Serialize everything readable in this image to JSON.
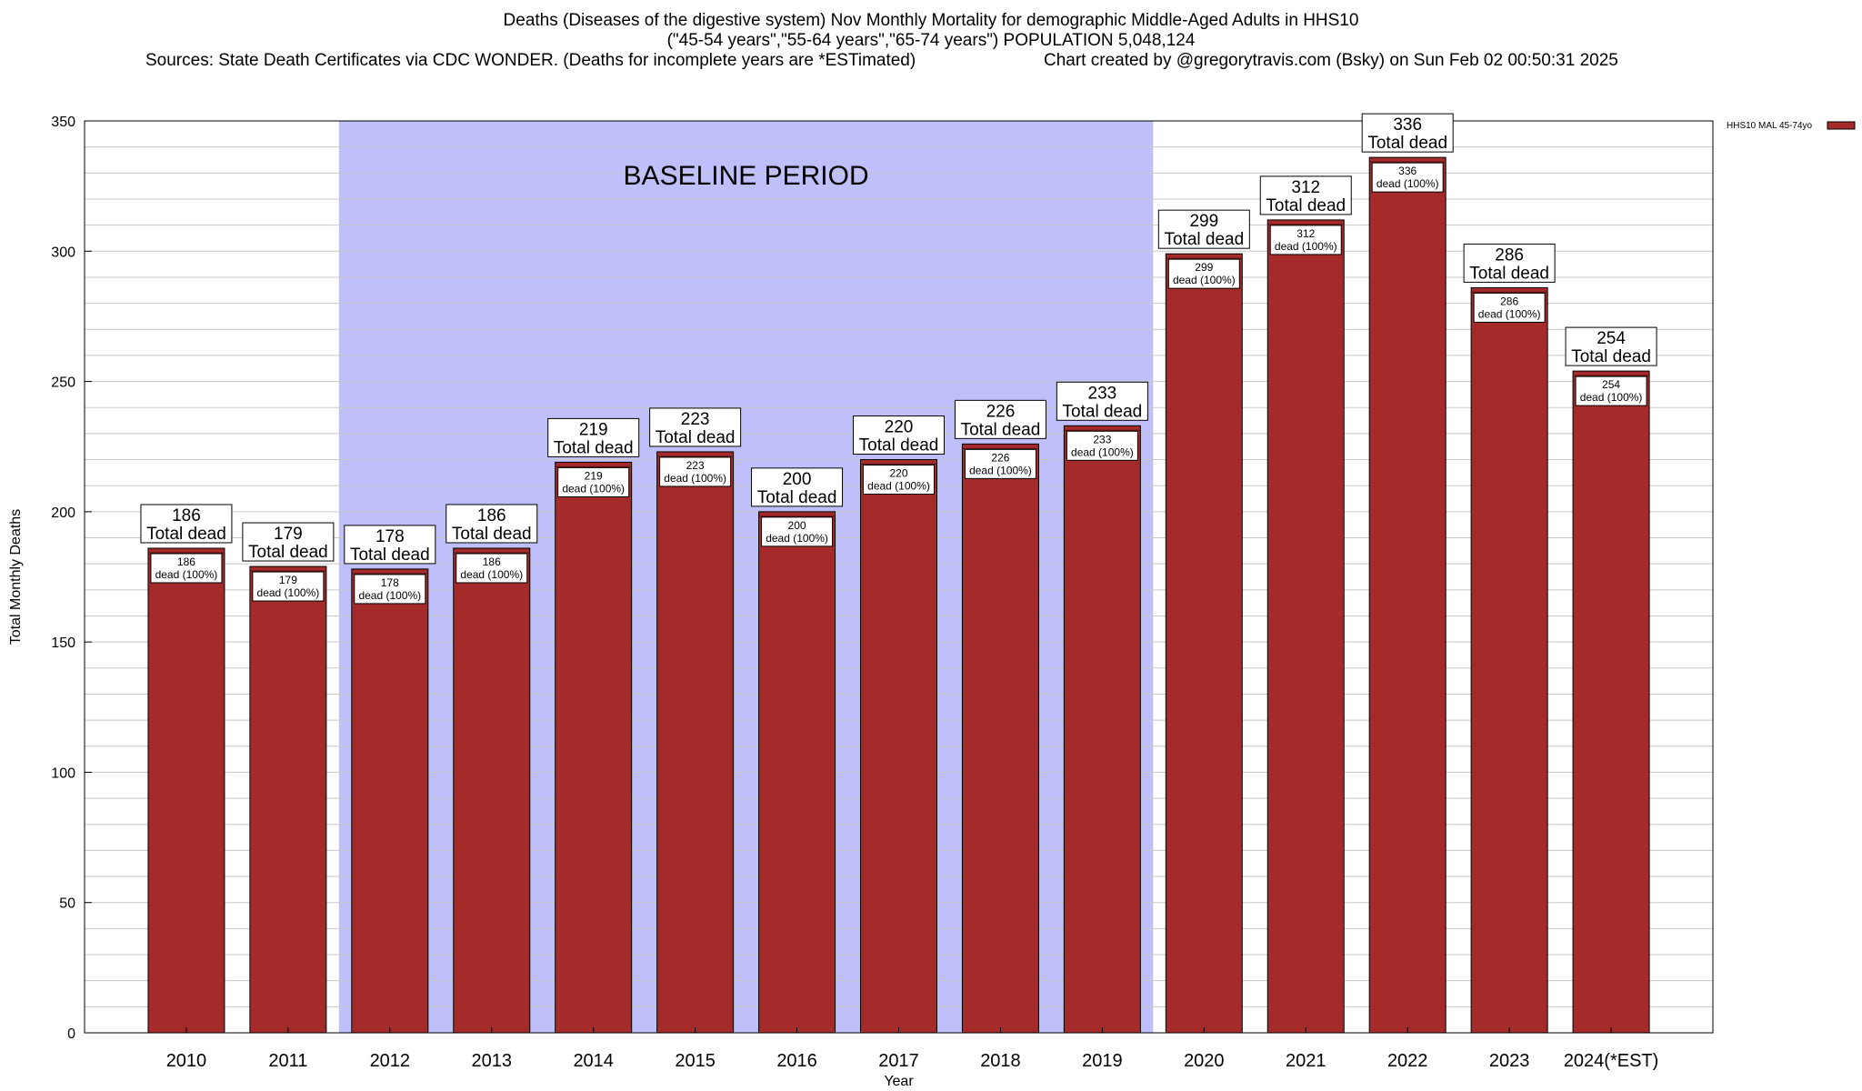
{
  "header": {
    "line1": "Deaths (Diseases of the digestive system) Nov Monthly Mortality for demographic Middle-Aged Adults in HHS10",
    "line2": "(\"45-54 years\",\"55-64 years\",\"65-74 years\") POPULATION 5,048,124",
    "line3_left": "Sources: State Death Certificates via CDC WONDER. (Deaths for incomplete years are *ESTimated)",
    "line3_right": "Chart created by @gregorytravis.com (Bsky) on Sun Feb 02 00:50:31 2025"
  },
  "chart_data": {
    "type": "bar",
    "title": "Deaths (Diseases of the digestive system) Nov Monthly Mortality for demographic Middle-Aged Adults in HHS10",
    "xlabel": "Year",
    "ylabel": "Total Monthly Deaths",
    "ylim": [
      0,
      350
    ],
    "yticks": [
      0,
      50,
      100,
      150,
      200,
      250,
      300,
      350
    ],
    "grid": true,
    "categories": [
      "2010",
      "2011",
      "2012",
      "2013",
      "2014",
      "2015",
      "2016",
      "2017",
      "2018",
      "2019",
      "2020",
      "2021",
      "2022",
      "2023",
      "2024(*EST)"
    ],
    "series": [
      {
        "name": "HHS10 MAL 45-74yo",
        "color": "#a52a2a",
        "values": [
          186,
          179,
          178,
          186,
          219,
          223,
          200,
          220,
          226,
          233,
          299,
          312,
          336,
          286,
          254
        ]
      }
    ],
    "top_label_suffix": "Total dead",
    "inner_label_suffix": "dead (100%)",
    "baseline": {
      "label": "BASELINE PERIOD",
      "start": "2012",
      "end": "2019",
      "color": "#bfbffc"
    },
    "legend": {
      "position": "top-right",
      "label": "HHS10 MAL 45-74yo"
    }
  }
}
